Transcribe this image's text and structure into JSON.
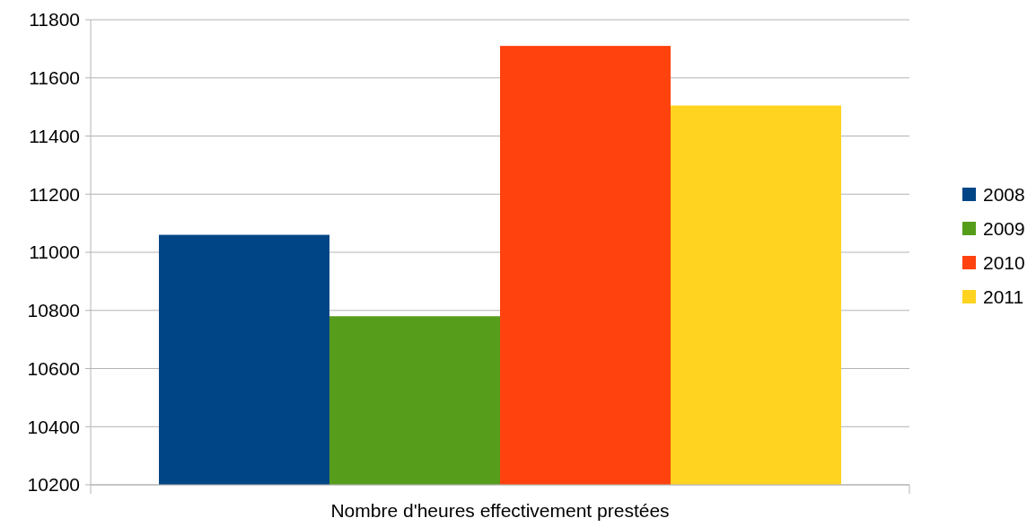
{
  "chart_data": {
    "type": "bar",
    "categories": [
      "Nombre d'heures effectivement prestées"
    ],
    "series": [
      {
        "name": "2008",
        "color": "#004586",
        "values": [
          11060
        ]
      },
      {
        "name": "2009",
        "color": "#579d1c",
        "values": [
          10780
        ]
      },
      {
        "name": "2010",
        "color": "#ff420e",
        "values": [
          11710
        ]
      },
      {
        "name": "2011",
        "color": "#ffd320",
        "values": [
          11505
        ]
      }
    ],
    "ylim": [
      10200,
      11800
    ],
    "yticks": [
      10200,
      10400,
      10600,
      10800,
      11000,
      11200,
      11400,
      11600,
      11800
    ],
    "grid": "y",
    "legend": "right"
  }
}
